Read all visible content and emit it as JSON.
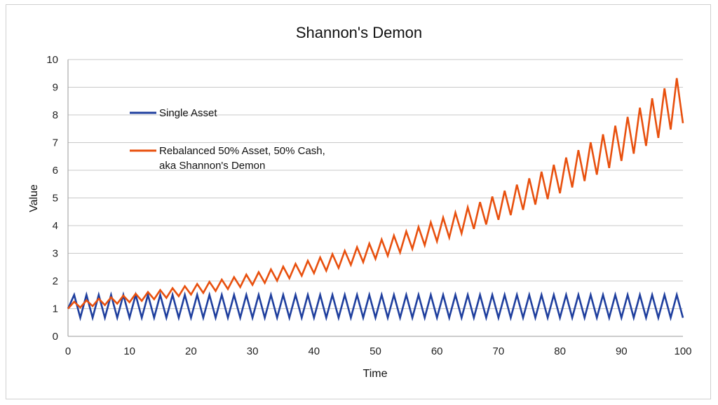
{
  "chart_data": {
    "type": "line",
    "title": "Shannon's Demon",
    "xlabel": "Time",
    "ylabel": "Value",
    "xlim": [
      0,
      100
    ],
    "ylim": [
      0,
      10
    ],
    "xticks": [
      0,
      10,
      20,
      30,
      40,
      50,
      60,
      70,
      80,
      90,
      100
    ],
    "yticks": [
      0,
      1,
      2,
      3,
      4,
      5,
      6,
      7,
      8,
      9,
      10
    ],
    "grid": true,
    "legend_position": "upper-left inside plot",
    "series": [
      {
        "name": "Single Asset",
        "color": "#1f3f9e",
        "x": [
          0,
          1,
          2,
          3,
          4,
          5,
          6,
          7,
          8,
          9,
          10,
          11,
          12,
          13,
          14,
          15,
          16,
          17,
          18,
          19,
          20,
          21,
          22,
          23,
          24,
          25,
          26,
          27,
          28,
          29,
          30,
          31,
          32,
          33,
          34,
          35,
          36,
          37,
          38,
          39,
          40,
          41,
          42,
          43,
          44,
          45,
          46,
          47,
          48,
          49,
          50,
          51,
          52,
          53,
          54,
          55,
          56,
          57,
          58,
          59,
          60,
          61,
          62,
          63,
          64,
          65,
          66,
          67,
          68,
          69,
          70,
          71,
          72,
          73,
          74,
          75,
          76,
          77,
          78,
          79,
          80,
          81,
          82,
          83,
          84,
          85,
          86,
          87,
          88,
          89,
          90,
          91,
          92,
          93,
          94,
          95,
          96,
          97,
          98,
          99,
          100
        ],
        "values": [
          1,
          1.5,
          0.67,
          1.5,
          0.67,
          1.5,
          0.67,
          1.5,
          0.67,
          1.5,
          0.67,
          1.5,
          0.67,
          1.5,
          0.67,
          1.5,
          0.67,
          1.5,
          0.67,
          1.5,
          0.67,
          1.5,
          0.67,
          1.5,
          0.67,
          1.5,
          0.67,
          1.5,
          0.67,
          1.5,
          0.67,
          1.5,
          0.67,
          1.5,
          0.67,
          1.5,
          0.67,
          1.5,
          0.67,
          1.5,
          0.67,
          1.5,
          0.67,
          1.5,
          0.67,
          1.5,
          0.67,
          1.5,
          0.67,
          1.5,
          0.67,
          1.5,
          0.67,
          1.5,
          0.67,
          1.5,
          0.67,
          1.5,
          0.67,
          1.5,
          0.67,
          1.5,
          0.67,
          1.5,
          0.67,
          1.5,
          0.67,
          1.5,
          0.67,
          1.5,
          0.67,
          1.5,
          0.67,
          1.5,
          0.67,
          1.5,
          0.67,
          1.5,
          0.67,
          1.5,
          0.67,
          1.5,
          0.67,
          1.5,
          0.67,
          1.5,
          0.67,
          1.5,
          0.67,
          1.5,
          0.67,
          1.5,
          0.67,
          1.5,
          0.67,
          1.5,
          0.67,
          1.5,
          0.67,
          1.5,
          0.67
        ]
      },
      {
        "name": "Rebalanced 50% Asset, 50% Cash, aka Shannon's Demon",
        "legend_lines": [
          "Rebalanced 50% Asset, 50% Cash,",
          "aka Shannon's Demon"
        ],
        "color": "#e8500e",
        "x": [
          0,
          1,
          2,
          3,
          4,
          5,
          6,
          7,
          8,
          9,
          10,
          11,
          12,
          13,
          14,
          15,
          16,
          17,
          18,
          19,
          20,
          21,
          22,
          23,
          24,
          25,
          26,
          27,
          28,
          29,
          30,
          31,
          32,
          33,
          34,
          35,
          36,
          37,
          38,
          39,
          40,
          41,
          42,
          43,
          44,
          45,
          46,
          47,
          48,
          49,
          50,
          51,
          52,
          53,
          54,
          55,
          56,
          57,
          58,
          59,
          60,
          61,
          62,
          63,
          64,
          65,
          66,
          67,
          68,
          69,
          70,
          71,
          72,
          73,
          74,
          75,
          76,
          77,
          78,
          79,
          80,
          81,
          82,
          83,
          84,
          85,
          86,
          87,
          88,
          89,
          90,
          91,
          92,
          93,
          94,
          95,
          96,
          97,
          98,
          99,
          100
        ],
        "values": [
          1,
          1.25,
          1.04,
          1.3,
          1.09,
          1.36,
          1.13,
          1.41,
          1.18,
          1.47,
          1.23,
          1.54,
          1.28,
          1.6,
          1.34,
          1.67,
          1.39,
          1.74,
          1.45,
          1.81,
          1.51,
          1.89,
          1.57,
          1.97,
          1.64,
          2.05,
          1.71,
          2.14,
          1.78,
          2.23,
          1.86,
          2.32,
          1.93,
          2.42,
          2.01,
          2.52,
          2.1,
          2.62,
          2.19,
          2.73,
          2.28,
          2.85,
          2.37,
          2.97,
          2.47,
          3.09,
          2.58,
          3.22,
          2.68,
          3.35,
          2.8,
          3.5,
          2.91,
          3.64,
          3.03,
          3.79,
          3.16,
          3.95,
          3.29,
          4.12,
          3.43,
          4.29,
          3.57,
          4.47,
          3.72,
          4.66,
          3.88,
          4.85,
          4.04,
          5.05,
          4.21,
          5.26,
          4.38,
          5.48,
          4.57,
          5.71,
          4.76,
          5.95,
          4.96,
          6.2,
          5.17,
          6.46,
          5.38,
          6.73,
          5.61,
          7.01,
          5.84,
          7.3,
          6.08,
          7.61,
          6.34,
          7.93,
          6.6,
          8.26,
          6.88,
          8.6,
          7.17,
          8.96,
          7.47,
          9.33,
          7.7
        ]
      }
    ]
  }
}
